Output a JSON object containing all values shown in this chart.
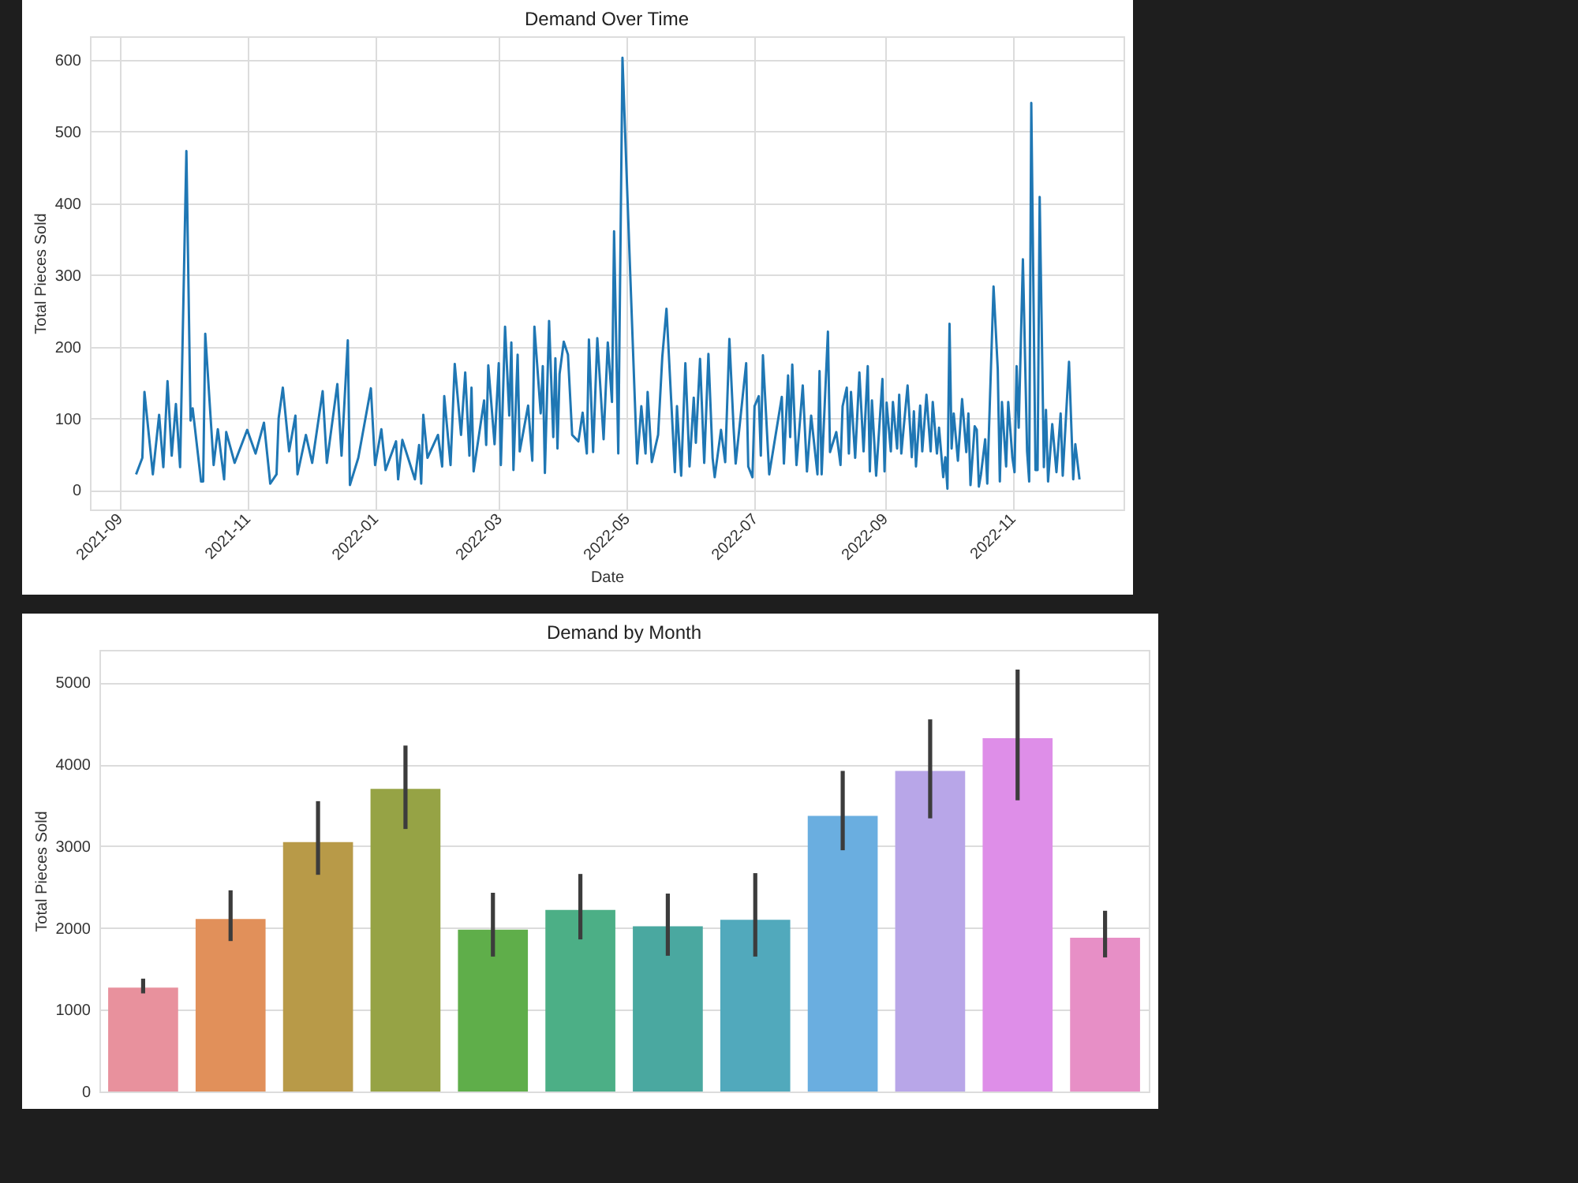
{
  "chart_data": [
    {
      "type": "line",
      "title": "Demand Over Time",
      "xlabel": "Date",
      "ylabel": "Total Pieces Sold",
      "color": "#1f77b4",
      "x": [
        "2021-09-09",
        "2021-09-12",
        "2021-09-13",
        "2021-09-17",
        "2021-09-20",
        "2021-09-22",
        "2021-09-24",
        "2021-09-26",
        "2021-09-28",
        "2021-09-30",
        "2021-10-03",
        "2021-10-05",
        "2021-10-06",
        "2021-10-10",
        "2021-10-11",
        "2021-10-12",
        "2021-10-16",
        "2021-10-18",
        "2021-10-21",
        "2021-10-22",
        "2021-10-26",
        "2021-11-01",
        "2021-11-05",
        "2021-11-09",
        "2021-11-12",
        "2021-11-15",
        "2021-11-16",
        "2021-11-18",
        "2021-11-21",
        "2021-11-24",
        "2021-11-25",
        "2021-11-29",
        "2021-12-02",
        "2021-12-07",
        "2021-12-09",
        "2021-12-14",
        "2021-12-16",
        "2021-12-19",
        "2021-12-20",
        "2021-12-24",
        "2021-12-30",
        "2022-01-01",
        "2022-01-04",
        "2022-01-06",
        "2022-01-11",
        "2022-01-12",
        "2022-01-14",
        "2022-01-20",
        "2022-01-22",
        "2022-01-23",
        "2022-01-24",
        "2022-01-26",
        "2022-01-31",
        "2022-02-02",
        "2022-02-03",
        "2022-02-06",
        "2022-02-08",
        "2022-02-11",
        "2022-02-13",
        "2022-02-15",
        "2022-02-16",
        "2022-02-17",
        "2022-02-22",
        "2022-02-23",
        "2022-02-24",
        "2022-02-27",
        "2022-03-01",
        "2022-03-02",
        "2022-03-04",
        "2022-03-06",
        "2022-03-07",
        "2022-03-08",
        "2022-03-10",
        "2022-03-11",
        "2022-03-15",
        "2022-03-17",
        "2022-03-18",
        "2022-03-21",
        "2022-03-22",
        "2022-03-23",
        "2022-03-25",
        "2022-03-27",
        "2022-03-28",
        "2022-03-29",
        "2022-03-30",
        "2022-04-01",
        "2022-04-03",
        "2022-04-05",
        "2022-04-08",
        "2022-04-10",
        "2022-04-12",
        "2022-04-13",
        "2022-04-15",
        "2022-04-17",
        "2022-04-19",
        "2022-04-20",
        "2022-04-22",
        "2022-04-24",
        "2022-04-25",
        "2022-04-27",
        "2022-04-29",
        "2022-05-01",
        "2022-05-06",
        "2022-05-08",
        "2022-05-10",
        "2022-05-11",
        "2022-05-13",
        "2022-05-16",
        "2022-05-18",
        "2022-05-20",
        "2022-05-24",
        "2022-05-25",
        "2022-05-27",
        "2022-05-29",
        "2022-05-31",
        "2022-06-02",
        "2022-06-03",
        "2022-06-05",
        "2022-06-07",
        "2022-06-09",
        "2022-06-11",
        "2022-06-12",
        "2022-06-15",
        "2022-06-17",
        "2022-06-19",
        "2022-06-21",
        "2022-06-22",
        "2022-06-27",
        "2022-06-28",
        "2022-06-30",
        "2022-07-01",
        "2022-07-03",
        "2022-07-04",
        "2022-07-05",
        "2022-07-08",
        "2022-07-14",
        "2022-07-15",
        "2022-07-17",
        "2022-07-18",
        "2022-07-19",
        "2022-07-21",
        "2022-07-24",
        "2022-07-26",
        "2022-07-28",
        "2022-07-31",
        "2022-08-01",
        "2022-08-02",
        "2022-08-05",
        "2022-08-06",
        "2022-08-09",
        "2022-08-11",
        "2022-08-12",
        "2022-08-14",
        "2022-08-15",
        "2022-08-16",
        "2022-08-18",
        "2022-08-20",
        "2022-08-22",
        "2022-08-24",
        "2022-08-25",
        "2022-08-26",
        "2022-08-28",
        "2022-08-31",
        "2022-09-01",
        "2022-09-02",
        "2022-09-04",
        "2022-09-05",
        "2022-09-07",
        "2022-09-08",
        "2022-09-09",
        "2022-09-12",
        "2022-09-14",
        "2022-09-15",
        "2022-09-16",
        "2022-09-18",
        "2022-09-19",
        "2022-09-21",
        "2022-09-23",
        "2022-09-24",
        "2022-09-26",
        "2022-09-27",
        "2022-09-29",
        "2022-09-30",
        "2022-10-01",
        "2022-10-02",
        "2022-10-03",
        "2022-10-04",
        "2022-10-06",
        "2022-10-08",
        "2022-10-10",
        "2022-10-11",
        "2022-10-12",
        "2022-10-14",
        "2022-10-15",
        "2022-10-16",
        "2022-10-17",
        "2022-10-19",
        "2022-10-20",
        "2022-10-23",
        "2022-10-25",
        "2022-10-26",
        "2022-10-27",
        "2022-10-29",
        "2022-10-30",
        "2022-11-01",
        "2022-11-02",
        "2022-11-03",
        "2022-11-04",
        "2022-11-06",
        "2022-11-08",
        "2022-11-09",
        "2022-11-10",
        "2022-11-12",
        "2022-11-13",
        "2022-11-14",
        "2022-11-16",
        "2022-11-17",
        "2022-11-18",
        "2022-11-20",
        "2022-11-22",
        "2022-11-24",
        "2022-11-25",
        "2022-11-28",
        "2022-11-30",
        "2022-12-01",
        "2022-12-03"
      ],
      "values": [
        22,
        45,
        137,
        22,
        105,
        32,
        152,
        48,
        120,
        32,
        473,
        97,
        114,
        12,
        12,
        218,
        35,
        85,
        15,
        81,
        38,
        84,
        51,
        94,
        9,
        22,
        100,
        143,
        54,
        104,
        22,
        77,
        38,
        138,
        38,
        148,
        48,
        209,
        7,
        45,
        142,
        35,
        85,
        28,
        68,
        15,
        70,
        15,
        63,
        9,
        105,
        45,
        77,
        33,
        131,
        35,
        176,
        77,
        164,
        48,
        143,
        26,
        125,
        63,
        174,
        64,
        177,
        35,
        228,
        104,
        206,
        28,
        189,
        54,
        118,
        41,
        228,
        107,
        173,
        24,
        236,
        74,
        184,
        58,
        162,
        207,
        189,
        77,
        68,
        108,
        51,
        210,
        53,
        212,
        118,
        71,
        206,
        123,
        361,
        51,
        603,
        439,
        37,
        117,
        51,
        137,
        39,
        77,
        186,
        253,
        25,
        117,
        20,
        177,
        33,
        129,
        66,
        183,
        38,
        190,
        45,
        18,
        84,
        39,
        211,
        87,
        37,
        177,
        33,
        18,
        117,
        131,
        48,
        188,
        22,
        130,
        37,
        160,
        74,
        175,
        35,
        146,
        26,
        104,
        22,
        166,
        22,
        221,
        53,
        81,
        35,
        117,
        143,
        51,
        137,
        45,
        164,
        54,
        173,
        26,
        125,
        20,
        155,
        26,
        122,
        54,
        123,
        58,
        133,
        51,
        146,
        46,
        110,
        33,
        118,
        54,
        133,
        54,
        123,
        51,
        87,
        18,
        46,
        2,
        232,
        58,
        107,
        41,
        127,
        53,
        107,
        7,
        89,
        84,
        5,
        22,
        71,
        9,
        284,
        169,
        12,
        123,
        33,
        123,
        45,
        25,
        173,
        87,
        322,
        54,
        12,
        540,
        28,
        28,
        409,
        32,
        112,
        12,
        92,
        25,
        107,
        20,
        179,
        15,
        64,
        15
      ],
      "xlim": [
        "2021-08-18",
        "2022-12-24"
      ],
      "xticks": [
        "2021-09",
        "2021-11",
        "2022-01",
        "2022-03",
        "2022-05",
        "2022-07",
        "2022-09",
        "2022-11"
      ],
      "ylim": [
        -27,
        633
      ],
      "yticks": [
        0,
        100,
        200,
        300,
        400,
        500,
        600
      ],
      "grid": true
    },
    {
      "type": "bar",
      "title": "Demand by Month",
      "ylabel": "Total Pieces Sold",
      "categories": [
        null,
        null,
        null,
        null,
        null,
        null,
        null,
        null,
        null,
        null,
        null,
        null
      ],
      "values": [
        1270,
        2110,
        3050,
        3700,
        1980,
        2220,
        2020,
        2100,
        3370,
        3920,
        4320,
        1880
      ],
      "errors": [
        [
          1200,
          1380
        ],
        [
          1840,
          2460
        ],
        [
          2650,
          3550
        ],
        [
          3210,
          4230
        ],
        [
          1650,
          2430
        ],
        [
          1860,
          2660
        ],
        [
          1660,
          2420
        ],
        [
          1650,
          2670
        ],
        [
          2950,
          3920
        ],
        [
          3340,
          4550
        ],
        [
          3560,
          5160
        ],
        [
          1640,
          2210
        ]
      ],
      "colors": [
        "#e8919d",
        "#e1905a",
        "#b89a48",
        "#96a345",
        "#5fae4a",
        "#4caf86",
        "#4aa8a0",
        "#51a9bc",
        "#6aaee0",
        "#b8a6e8",
        "#de8ee8",
        "#e78fc6"
      ],
      "ylim": [
        0,
        5400
      ],
      "yticks": [
        0,
        1000,
        2000,
        3000,
        4000,
        5000
      ],
      "grid": "y"
    }
  ]
}
